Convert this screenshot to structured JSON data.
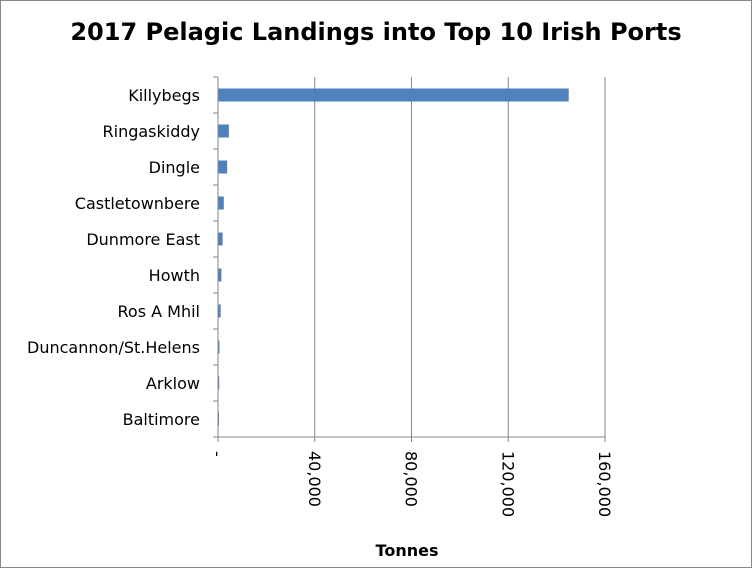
{
  "chart_data": {
    "type": "bar",
    "orientation": "horizontal",
    "title": "2017 Pelagic Landings into Top 10 Irish Ports",
    "xlabel": "Tonnes",
    "ylabel": "",
    "categories": [
      "Killybegs",
      "Ringaskiddy",
      "Dingle",
      "Castletownbere",
      "Dunmore East",
      "Howth",
      "Ros A Mhil",
      "Duncannon/St.Helens",
      "Arklow",
      "Baltimore"
    ],
    "values": [
      145000,
      4500,
      3800,
      2400,
      1900,
      1400,
      1100,
      600,
      500,
      400
    ],
    "xlim": [
      0,
      160000
    ],
    "ticks": [
      0,
      40000,
      80000,
      120000,
      160000
    ],
    "tick_labels": [
      "-",
      "40,000",
      "80,000",
      "120,000",
      "160,000"
    ],
    "grid": "vertical major gridlines",
    "legend": "none",
    "bar_color": "#4F81BD"
  }
}
